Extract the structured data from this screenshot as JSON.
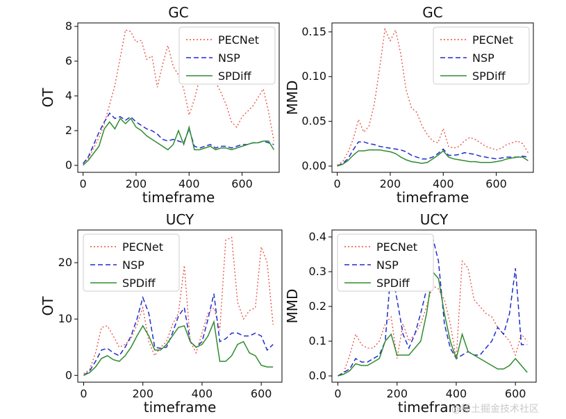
{
  "colors": {
    "PECNet": "#e74c3c",
    "NSP": "#1f2ccc",
    "SPDiff": "#2e8b2e"
  },
  "watermark": "@稀土掘金技术社区",
  "chart_data": [
    {
      "type": "line",
      "title": "GC",
      "xlabel": "timeframe",
      "ylabel": "OT",
      "xlim": [
        -20,
        740
      ],
      "ylim": [
        -0.4,
        8.2
      ],
      "xticks": [
        0,
        200,
        400,
        600
      ],
      "yticks": [
        0,
        2,
        4,
        6,
        8
      ],
      "ytick_labels": [
        "0",
        "2",
        "4",
        "6",
        "8"
      ],
      "legend": "top-right",
      "series": [
        {
          "name": "PECNet",
          "style": "dotted",
          "x": [
            0,
            20,
            40,
            60,
            80,
            100,
            120,
            140,
            160,
            180,
            200,
            220,
            240,
            260,
            280,
            300,
            320,
            340,
            360,
            380,
            400,
            420,
            440,
            460,
            480,
            500,
            520,
            540,
            560,
            580,
            600,
            620,
            640,
            660,
            680,
            700,
            720
          ],
          "y": [
            0.1,
            0.4,
            1.0,
            1.6,
            2.4,
            3.5,
            4.6,
            6.2,
            7.8,
            7.7,
            7.1,
            7.2,
            6.1,
            6.3,
            4.5,
            5.8,
            6.9,
            5.7,
            5.2,
            4.4,
            2.9,
            3.8,
            5.0,
            5.7,
            5.9,
            4.8,
            4.2,
            3.5,
            2.5,
            2.2,
            2.8,
            3.1,
            3.4,
            3.9,
            4.4,
            3.1,
            1.4
          ]
        },
        {
          "name": "NSP",
          "style": "dashed",
          "x": [
            0,
            20,
            40,
            60,
            80,
            100,
            120,
            140,
            160,
            180,
            200,
            220,
            240,
            260,
            280,
            300,
            320,
            340,
            360,
            380,
            400,
            420,
            440,
            460,
            480,
            500,
            520,
            540,
            560,
            580,
            600,
            620,
            640,
            660,
            680,
            700,
            720
          ],
          "y": [
            0.1,
            0.5,
            1.2,
            1.9,
            2.5,
            3.0,
            2.7,
            2.8,
            2.6,
            2.8,
            2.5,
            2.3,
            2.1,
            2.0,
            1.8,
            1.5,
            1.4,
            1.5,
            1.4,
            1.3,
            2.1,
            1.1,
            1.0,
            1.1,
            1.2,
            1.0,
            1.1,
            1.1,
            1.0,
            1.1,
            1.2,
            1.2,
            1.3,
            1.3,
            1.4,
            1.3,
            1.2
          ]
        },
        {
          "name": "SPDiff",
          "style": "solid",
          "x": [
            0,
            20,
            40,
            60,
            80,
            100,
            120,
            140,
            160,
            180,
            200,
            220,
            240,
            260,
            280,
            300,
            320,
            340,
            360,
            380,
            400,
            420,
            440,
            460,
            480,
            500,
            520,
            540,
            560,
            580,
            600,
            620,
            640,
            660,
            680,
            700,
            720
          ],
          "y": [
            0.0,
            0.3,
            0.7,
            1.1,
            2.1,
            2.5,
            2.1,
            2.7,
            2.4,
            2.7,
            2.2,
            2.0,
            1.7,
            1.5,
            1.3,
            1.1,
            0.9,
            1.2,
            2.0,
            1.2,
            2.2,
            0.9,
            0.9,
            1.0,
            1.1,
            0.9,
            1.0,
            1.0,
            0.9,
            1.0,
            1.1,
            1.2,
            1.3,
            1.3,
            1.4,
            1.4,
            0.9
          ]
        }
      ]
    },
    {
      "type": "line",
      "title": "GC",
      "xlabel": "timeframe",
      "ylabel": "MMD",
      "xlim": [
        -20,
        740
      ],
      "ylim": [
        -0.007,
        0.16
      ],
      "xticks": [
        0,
        200,
        400,
        600
      ],
      "yticks": [
        0,
        0.05,
        0.1,
        0.15
      ],
      "ytick_labels": [
        "0.00",
        "0.05",
        "0.10",
        "0.15"
      ],
      "legend": "top-right",
      "series": [
        {
          "name": "PECNet",
          "style": "dotted",
          "x": [
            0,
            20,
            40,
            60,
            80,
            100,
            120,
            140,
            160,
            180,
            200,
            220,
            240,
            260,
            280,
            300,
            320,
            340,
            360,
            380,
            400,
            420,
            440,
            460,
            480,
            500,
            520,
            540,
            560,
            580,
            600,
            620,
            640,
            660,
            680,
            700,
            720
          ],
          "y": [
            0.001,
            0.005,
            0.015,
            0.03,
            0.052,
            0.038,
            0.045,
            0.07,
            0.11,
            0.153,
            0.14,
            0.152,
            0.125,
            0.085,
            0.065,
            0.06,
            0.045,
            0.035,
            0.028,
            0.026,
            0.042,
            0.022,
            0.02,
            0.022,
            0.028,
            0.032,
            0.03,
            0.026,
            0.022,
            0.02,
            0.018,
            0.02,
            0.024,
            0.026,
            0.028,
            0.025,
            0.015
          ]
        },
        {
          "name": "NSP",
          "style": "dashed",
          "x": [
            0,
            20,
            40,
            60,
            80,
            100,
            120,
            140,
            160,
            180,
            200,
            220,
            240,
            260,
            280,
            300,
            320,
            340,
            360,
            380,
            400,
            420,
            440,
            460,
            480,
            500,
            520,
            540,
            560,
            580,
            600,
            620,
            640,
            660,
            680,
            700,
            720
          ],
          "y": [
            0.0,
            0.003,
            0.008,
            0.018,
            0.027,
            0.027,
            0.025,
            0.024,
            0.022,
            0.021,
            0.02,
            0.019,
            0.018,
            0.016,
            0.012,
            0.01,
            0.008,
            0.008,
            0.01,
            0.014,
            0.019,
            0.012,
            0.012,
            0.013,
            0.015,
            0.014,
            0.013,
            0.011,
            0.01,
            0.009,
            0.008,
            0.009,
            0.01,
            0.01,
            0.01,
            0.011,
            0.01
          ]
        },
        {
          "name": "SPDiff",
          "style": "solid",
          "x": [
            0,
            20,
            40,
            60,
            80,
            100,
            120,
            140,
            160,
            180,
            200,
            220,
            240,
            260,
            280,
            300,
            320,
            340,
            360,
            380,
            400,
            420,
            440,
            460,
            480,
            500,
            520,
            540,
            560,
            580,
            600,
            620,
            640,
            660,
            680,
            700,
            720
          ],
          "y": [
            0.0,
            0.002,
            0.006,
            0.012,
            0.017,
            0.017,
            0.018,
            0.018,
            0.018,
            0.017,
            0.016,
            0.014,
            0.01,
            0.007,
            0.005,
            0.004,
            0.003,
            0.004,
            0.008,
            0.012,
            0.017,
            0.01,
            0.008,
            0.007,
            0.006,
            0.005,
            0.005,
            0.004,
            0.004,
            0.004,
            0.005,
            0.006,
            0.008,
            0.009,
            0.01,
            0.01,
            0.006
          ]
        }
      ]
    },
    {
      "type": "line",
      "title": "UCY",
      "xlabel": "timeframe",
      "ylabel": "OT",
      "xlim": [
        -20,
        670
      ],
      "ylim": [
        -1.2,
        25.8
      ],
      "xticks": [
        0,
        200,
        400,
        600
      ],
      "yticks": [
        0,
        10,
        20
      ],
      "ytick_labels": [
        "0",
        "10",
        "20"
      ],
      "legend": "top-left",
      "series": [
        {
          "name": "PECNet",
          "style": "dotted",
          "x": [
            0,
            20,
            40,
            60,
            80,
            100,
            120,
            140,
            160,
            180,
            200,
            220,
            240,
            260,
            280,
            300,
            320,
            340,
            360,
            380,
            400,
            420,
            440,
            460,
            480,
            500,
            520,
            540,
            560,
            580,
            600,
            620,
            640
          ],
          "y": [
            0.3,
            1.0,
            4.0,
            8.5,
            8.8,
            7.0,
            5.0,
            5.5,
            6.5,
            9.0,
            12.0,
            6.0,
            3.5,
            5.0,
            6.0,
            9.0,
            11.0,
            19.5,
            6.0,
            4.0,
            7.5,
            11.0,
            12.0,
            8.0,
            24.0,
            24.5,
            13.0,
            10.0,
            11.5,
            12.0,
            22.8,
            20.0,
            9.0
          ]
        },
        {
          "name": "NSP",
          "style": "dashed",
          "x": [
            0,
            20,
            40,
            60,
            80,
            100,
            120,
            140,
            160,
            180,
            200,
            220,
            240,
            260,
            280,
            300,
            320,
            340,
            360,
            380,
            400,
            420,
            440,
            460,
            480,
            500,
            520,
            540,
            560,
            580,
            600,
            620,
            640
          ],
          "y": [
            0.0,
            0.8,
            2.5,
            4.5,
            4.8,
            4.0,
            3.5,
            5.0,
            7.0,
            10.0,
            13.8,
            11.0,
            5.0,
            4.8,
            5.0,
            7.5,
            10.5,
            12.0,
            6.0,
            5.0,
            6.0,
            10.0,
            14.5,
            6.0,
            6.5,
            7.5,
            7.5,
            7.0,
            7.0,
            7.5,
            7.0,
            4.5,
            5.5
          ]
        },
        {
          "name": "SPDiff",
          "style": "solid",
          "x": [
            0,
            20,
            40,
            60,
            80,
            100,
            120,
            140,
            160,
            180,
            200,
            220,
            240,
            260,
            280,
            300,
            320,
            340,
            360,
            380,
            400,
            420,
            440,
            460,
            480,
            500,
            520,
            540,
            560,
            580,
            600,
            620,
            640
          ],
          "y": [
            0.0,
            0.5,
            1.5,
            3.0,
            3.5,
            2.8,
            2.5,
            3.5,
            5.0,
            7.0,
            8.8,
            7.0,
            4.5,
            4.5,
            5.5,
            7.0,
            8.5,
            8.8,
            6.0,
            5.0,
            5.5,
            7.0,
            9.5,
            2.5,
            2.5,
            3.5,
            5.5,
            6.0,
            4.0,
            3.5,
            1.8,
            1.5,
            1.5
          ]
        }
      ]
    },
    {
      "type": "line",
      "title": "UCY",
      "xlabel": "timeframe",
      "ylabel": "MMD",
      "xlim": [
        -20,
        670
      ],
      "ylim": [
        -0.018,
        0.42
      ],
      "xticks": [
        0,
        200,
        400,
        600
      ],
      "yticks": [
        0,
        0.1,
        0.2,
        0.3,
        0.4
      ],
      "ytick_labels": [
        "0.0",
        "0.1",
        "0.2",
        "0.3",
        "0.4"
      ],
      "legend": "top-left",
      "series": [
        {
          "name": "PECNet",
          "style": "dotted",
          "x": [
            0,
            20,
            40,
            60,
            80,
            100,
            120,
            140,
            160,
            180,
            200,
            220,
            240,
            260,
            280,
            300,
            320,
            340,
            360,
            380,
            400,
            420,
            440,
            460,
            480,
            500,
            520,
            540,
            560,
            580,
            600,
            620,
            640
          ],
          "y": [
            0.0,
            0.01,
            0.06,
            0.12,
            0.09,
            0.08,
            0.08,
            0.1,
            0.15,
            0.17,
            0.05,
            0.15,
            0.1,
            0.12,
            0.15,
            0.2,
            0.26,
            0.25,
            0.22,
            0.15,
            0.05,
            0.33,
            0.31,
            0.22,
            0.2,
            0.18,
            0.17,
            0.14,
            0.12,
            0.1,
            0.06,
            0.12,
            0.1
          ]
        },
        {
          "name": "NSP",
          "style": "dashed",
          "x": [
            0,
            20,
            40,
            60,
            80,
            100,
            120,
            140,
            160,
            180,
            200,
            220,
            240,
            260,
            280,
            300,
            320,
            340,
            360,
            380,
            400,
            420,
            440,
            460,
            480,
            500,
            520,
            540,
            560,
            580,
            600,
            620,
            640
          ],
          "y": [
            0.0,
            0.01,
            0.02,
            0.05,
            0.04,
            0.04,
            0.05,
            0.06,
            0.1,
            0.31,
            0.22,
            0.12,
            0.08,
            0.12,
            0.18,
            0.25,
            0.4,
            0.33,
            0.15,
            0.08,
            0.05,
            0.06,
            0.07,
            0.06,
            0.06,
            0.08,
            0.1,
            0.14,
            0.12,
            0.18,
            0.31,
            0.09,
            0.09
          ]
        },
        {
          "name": "SPDiff",
          "style": "solid",
          "x": [
            0,
            20,
            40,
            60,
            80,
            100,
            120,
            140,
            160,
            180,
            200,
            220,
            240,
            260,
            280,
            300,
            320,
            340,
            360,
            380,
            400,
            420,
            440,
            460,
            480,
            500,
            520,
            540,
            560,
            580,
            600,
            620,
            640
          ],
          "y": [
            0.0,
            0.005,
            0.015,
            0.035,
            0.03,
            0.03,
            0.04,
            0.05,
            0.1,
            0.12,
            0.06,
            0.06,
            0.06,
            0.08,
            0.1,
            0.18,
            0.3,
            0.28,
            0.18,
            0.1,
            0.05,
            0.12,
            0.07,
            0.06,
            0.05,
            0.04,
            0.03,
            0.02,
            0.02,
            0.03,
            0.05,
            0.03,
            0.01
          ]
        }
      ]
    }
  ]
}
